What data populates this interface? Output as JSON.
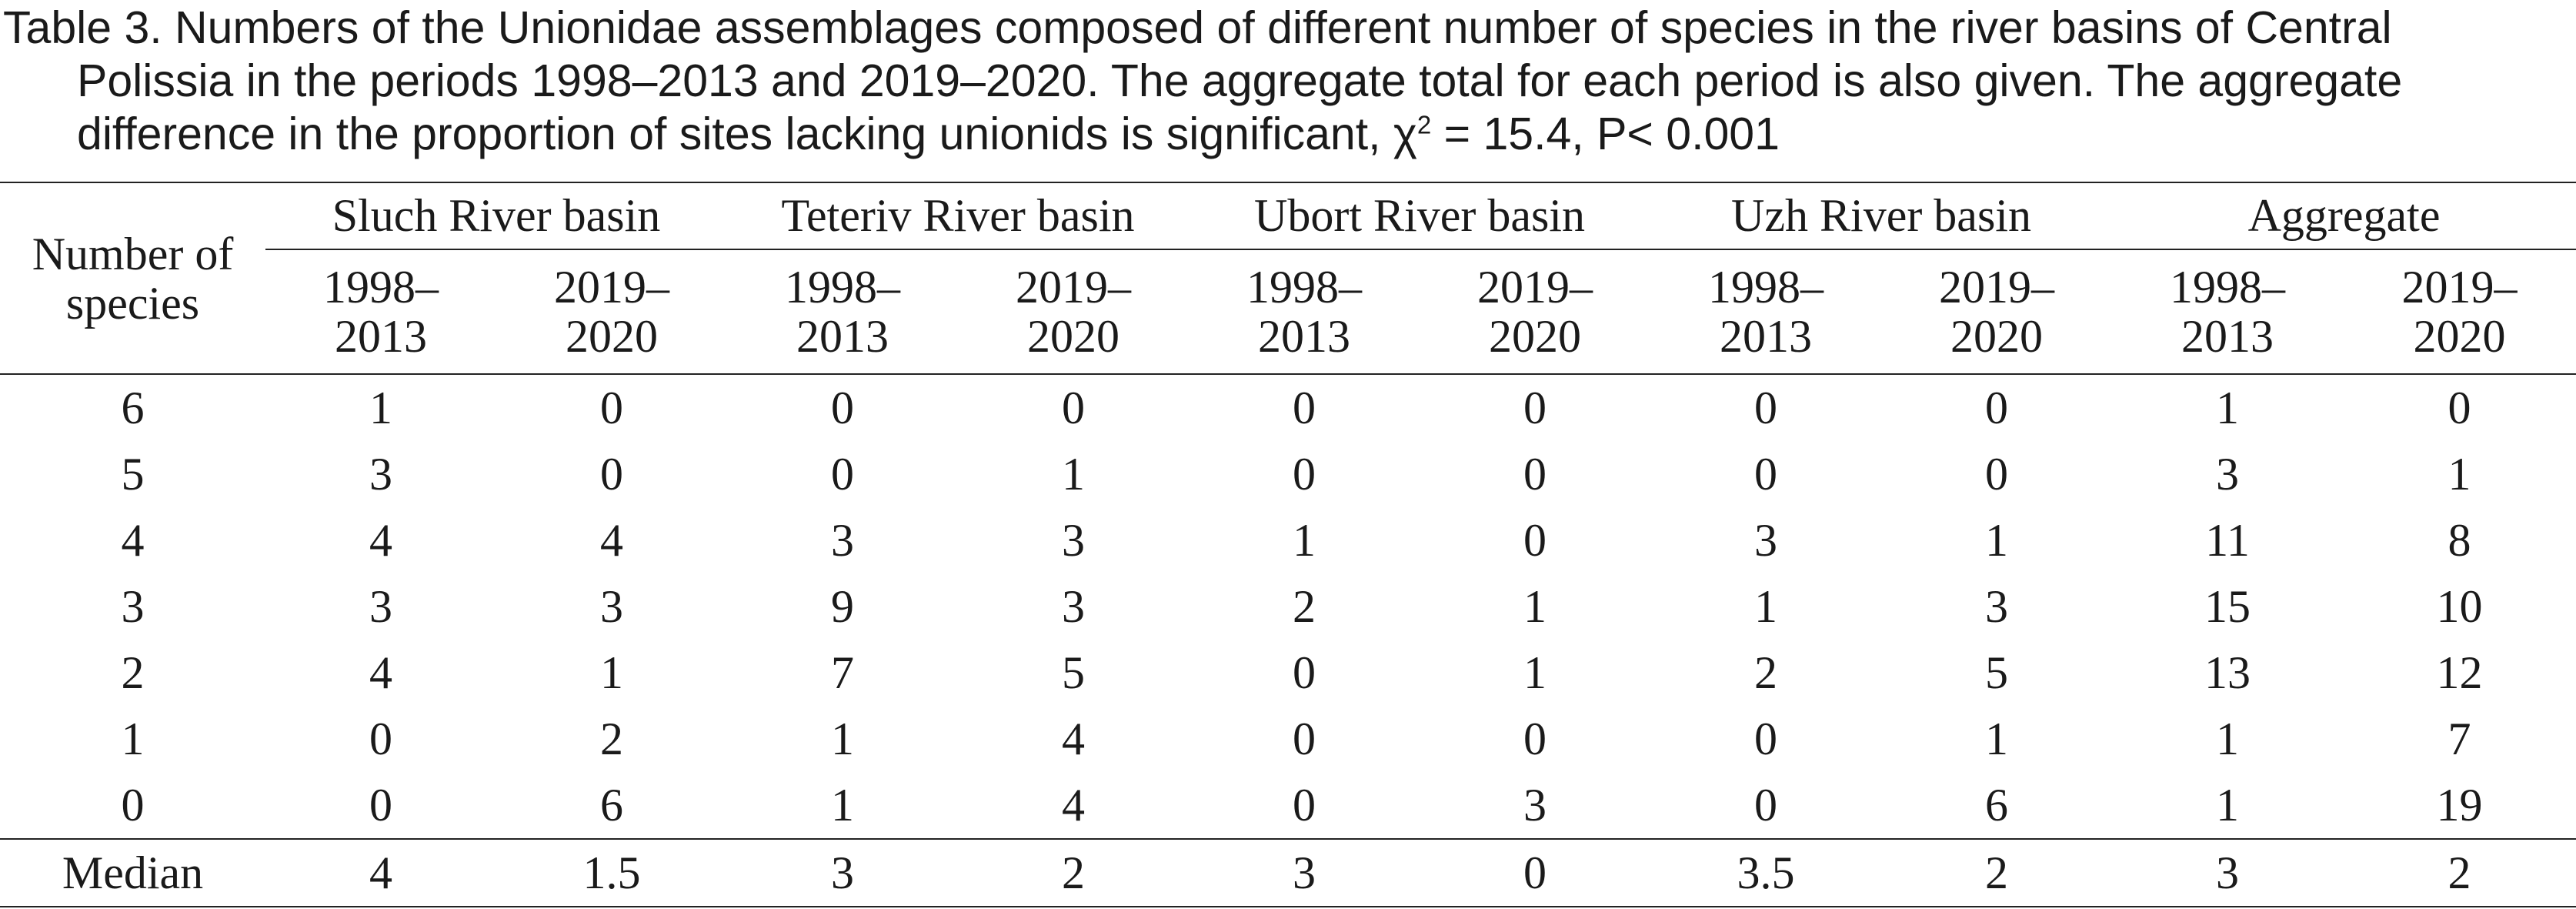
{
  "caption": {
    "lines": [
      "Table 3. Numbers of the Unionidae assemblages composed of different number of species in the river basins of Central",
      "Polissia in the periods 1998–2013 and 2019–2020. The aggregate total for each period is also given. The aggregate",
      "difference in the proportion of sites lacking unionids is significant, χ",
      " = 15.4, P< 0.001"
    ],
    "chi_superscript": "2"
  },
  "table": {
    "row_header": "Number of species",
    "groups": [
      "Sluch River basin",
      "Teteriv River basin",
      "Ubort River basin",
      "Uzh River basin",
      "Aggregate"
    ],
    "periods": [
      "1998–2013",
      "2019–2020"
    ],
    "rows": [
      {
        "species": "6",
        "values": [
          "1",
          "0",
          "0",
          "0",
          "0",
          "0",
          "0",
          "0",
          "1",
          "0"
        ]
      },
      {
        "species": "5",
        "values": [
          "3",
          "0",
          "0",
          "1",
          "0",
          "0",
          "0",
          "0",
          "3",
          "1"
        ]
      },
      {
        "species": "4",
        "values": [
          "4",
          "4",
          "3",
          "3",
          "1",
          "0",
          "3",
          "1",
          "11",
          "8"
        ]
      },
      {
        "species": "3",
        "values": [
          "3",
          "3",
          "9",
          "3",
          "2",
          "1",
          "1",
          "3",
          "15",
          "10"
        ]
      },
      {
        "species": "2",
        "values": [
          "4",
          "1",
          "7",
          "5",
          "0",
          "1",
          "2",
          "5",
          "13",
          "12"
        ]
      },
      {
        "species": "1",
        "values": [
          "0",
          "2",
          "1",
          "4",
          "0",
          "0",
          "0",
          "1",
          "1",
          "7"
        ]
      },
      {
        "species": "0",
        "values": [
          "0",
          "6",
          "1",
          "4",
          "0",
          "3",
          "0",
          "6",
          "1",
          "19"
        ]
      }
    ],
    "median": {
      "label": "Median",
      "values": [
        "4",
        "1.5",
        "3",
        "2",
        "3",
        "0",
        "3.5",
        "2",
        "3",
        "2"
      ]
    }
  }
}
